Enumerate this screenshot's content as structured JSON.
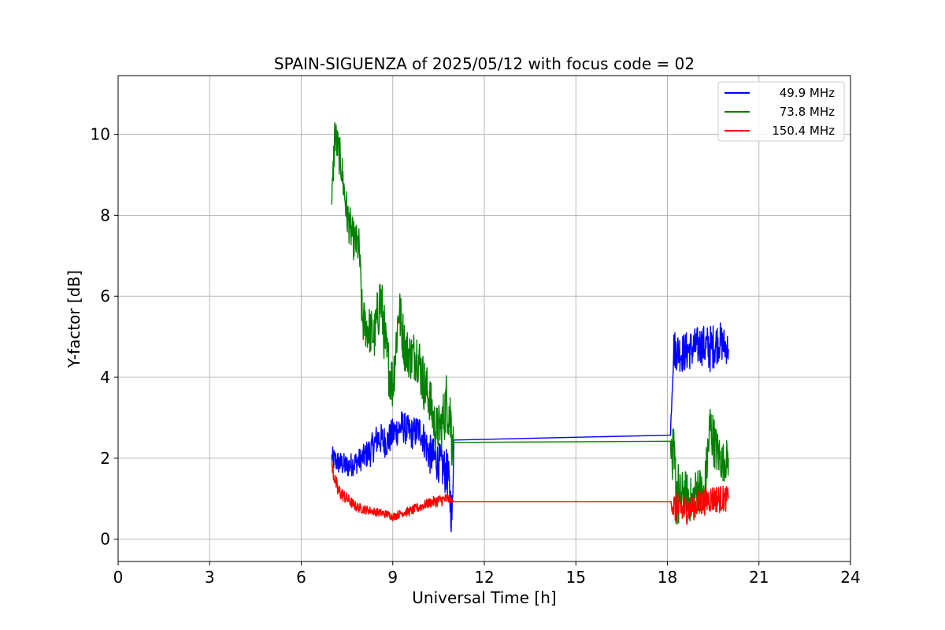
{
  "chart_data": {
    "type": "line",
    "title": "SPAIN-SIGUENZA of 2025/05/12 with focus code = 02",
    "xlabel": "Universal Time [h]",
    "ylabel": "Y-factor [dB]",
    "xlim": [
      0,
      24
    ],
    "ylim": [
      -0.55,
      11.45
    ],
    "xticks": [
      0,
      3,
      6,
      9,
      12,
      15,
      18,
      21,
      24
    ],
    "xtick_labels": [
      "0",
      "3",
      "6",
      "9",
      "12",
      "15",
      "18",
      "21",
      "24"
    ],
    "yticks": [
      0,
      2,
      4,
      6,
      8,
      10
    ],
    "ytick_labels": [
      "0",
      "2",
      "4",
      "6",
      "8",
      "10"
    ],
    "grid": true,
    "legend_position": "top-right",
    "series": [
      {
        "name": "49.9 MHz",
        "color": "#0000ff",
        "x": [
          7.0,
          7.2,
          7.5,
          7.8,
          8.0,
          8.3,
          8.5,
          8.8,
          9.0,
          9.3,
          9.6,
          9.9,
          10.2,
          10.5,
          10.8,
          10.95,
          11.0,
          18.1,
          18.2,
          18.5,
          18.8,
          19.1,
          19.4,
          19.7,
          20.0
        ],
        "y": [
          2.0,
          1.9,
          1.8,
          1.9,
          2.0,
          2.2,
          2.5,
          2.4,
          2.6,
          2.8,
          2.6,
          2.7,
          2.1,
          1.9,
          1.6,
          0.5,
          2.45,
          2.57,
          4.7,
          4.6,
          4.7,
          4.8,
          4.7,
          4.9,
          4.7
        ],
        "band": [
          0.3,
          0.3,
          0.3,
          0.3,
          0.3,
          0.4,
          0.4,
          0.4,
          0.4,
          0.4,
          0.4,
          0.4,
          0.5,
          0.5,
          0.6,
          0.6,
          0,
          0,
          0.5,
          0.5,
          0.5,
          0.5,
          0.6,
          0.5,
          0.4
        ]
      },
      {
        "name": "73.8 MHz",
        "color": "#008000",
        "x": [
          7.0,
          7.1,
          7.3,
          7.5,
          7.7,
          7.9,
          8.0,
          8.2,
          8.4,
          8.6,
          8.8,
          9.0,
          9.2,
          9.4,
          9.6,
          9.8,
          10.0,
          10.2,
          10.4,
          10.6,
          10.8,
          10.95,
          11.0,
          18.1,
          18.2,
          18.4,
          18.6,
          18.8,
          19.0,
          19.2,
          19.4,
          19.6,
          19.8,
          20.0
        ],
        "y": [
          8.2,
          10.0,
          9.3,
          8.0,
          7.4,
          7.2,
          5.4,
          5.2,
          5.0,
          6.0,
          4.5,
          3.8,
          5.7,
          4.7,
          4.5,
          4.6,
          3.9,
          3.5,
          2.7,
          2.8,
          3.5,
          2.6,
          2.39,
          2.42,
          1.6,
          0.9,
          1.2,
          0.9,
          1.3,
          1.0,
          2.8,
          2.2,
          1.9,
          2.0
        ],
        "band": [
          0.5,
          0.5,
          0.5,
          0.5,
          0.5,
          0.5,
          0.6,
          0.6,
          0.6,
          0.8,
          0.7,
          0.7,
          0.7,
          0.6,
          0.6,
          0.7,
          0.7,
          0.6,
          0.6,
          0.6,
          0.9,
          1.0,
          0,
          0,
          1.2,
          0.8,
          0.5,
          0.6,
          0.6,
          0.6,
          0.7,
          0.6,
          0.5,
          0.5
        ]
      },
      {
        "name": "150.4 MHz",
        "color": "#ff0000",
        "x": [
          7.0,
          7.2,
          7.5,
          7.8,
          8.0,
          8.3,
          8.6,
          8.9,
          9.0,
          9.3,
          9.6,
          9.9,
          10.2,
          10.5,
          10.8,
          11.0,
          18.1,
          18.2,
          18.5,
          18.8,
          19.1,
          19.4,
          19.7,
          20.0
        ],
        "y": [
          1.8,
          1.2,
          1.0,
          0.8,
          0.75,
          0.7,
          0.65,
          0.6,
          0.55,
          0.65,
          0.7,
          0.8,
          0.9,
          0.95,
          1.0,
          0.93,
          0.93,
          0.8,
          0.7,
          0.8,
          0.9,
          1.0,
          1.0,
          1.0
        ],
        "band": [
          0.2,
          0.2,
          0.15,
          0.12,
          0.12,
          0.1,
          0.1,
          0.1,
          0.1,
          0.1,
          0.12,
          0.12,
          0.12,
          0.15,
          0.15,
          0,
          0,
          0.4,
          0.4,
          0.35,
          0.35,
          0.35,
          0.35,
          0.3
        ]
      }
    ]
  }
}
